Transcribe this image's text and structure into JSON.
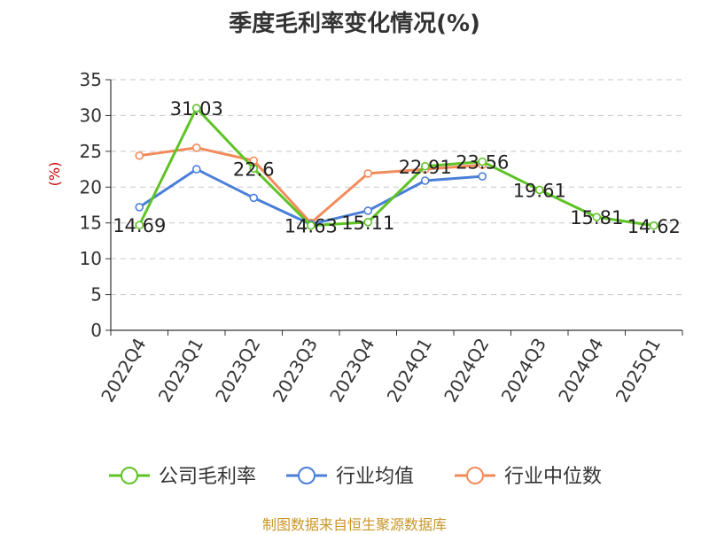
{
  "title": "季度毛利率变化情况(%)",
  "source": "制图数据来自恒生聚源数据库",
  "chart_data": {
    "type": "line",
    "title": "季度毛利率变化情况(%)",
    "ylabel": "(%)",
    "ylim": [
      0,
      35
    ],
    "yticks": [
      0,
      5,
      10,
      15,
      20,
      25,
      30,
      35
    ],
    "grid": true,
    "legend_position": "bottom",
    "categories": [
      "2022Q4",
      "2023Q1",
      "2023Q2",
      "2023Q3",
      "2023Q4",
      "2024Q1",
      "2024Q2",
      "2024Q3",
      "2024Q4",
      "2025Q1"
    ],
    "series": [
      {
        "name": "公司毛利率",
        "color": "#5fc326",
        "labeled": true,
        "values": [
          14.69,
          31.03,
          22.6,
          14.63,
          15.11,
          22.91,
          23.56,
          19.61,
          15.81,
          14.62
        ]
      },
      {
        "name": "行业均值",
        "color": "#4a7fd8",
        "labeled": false,
        "values": [
          17.2,
          22.5,
          18.5,
          14.8,
          16.7,
          20.9,
          21.5,
          null,
          null,
          null
        ]
      },
      {
        "name": "行业中位数",
        "color": "#f28b5a",
        "labeled": false,
        "values": [
          24.4,
          25.5,
          23.7,
          15.0,
          21.9,
          22.5,
          23.1,
          null,
          null,
          null
        ]
      }
    ]
  }
}
